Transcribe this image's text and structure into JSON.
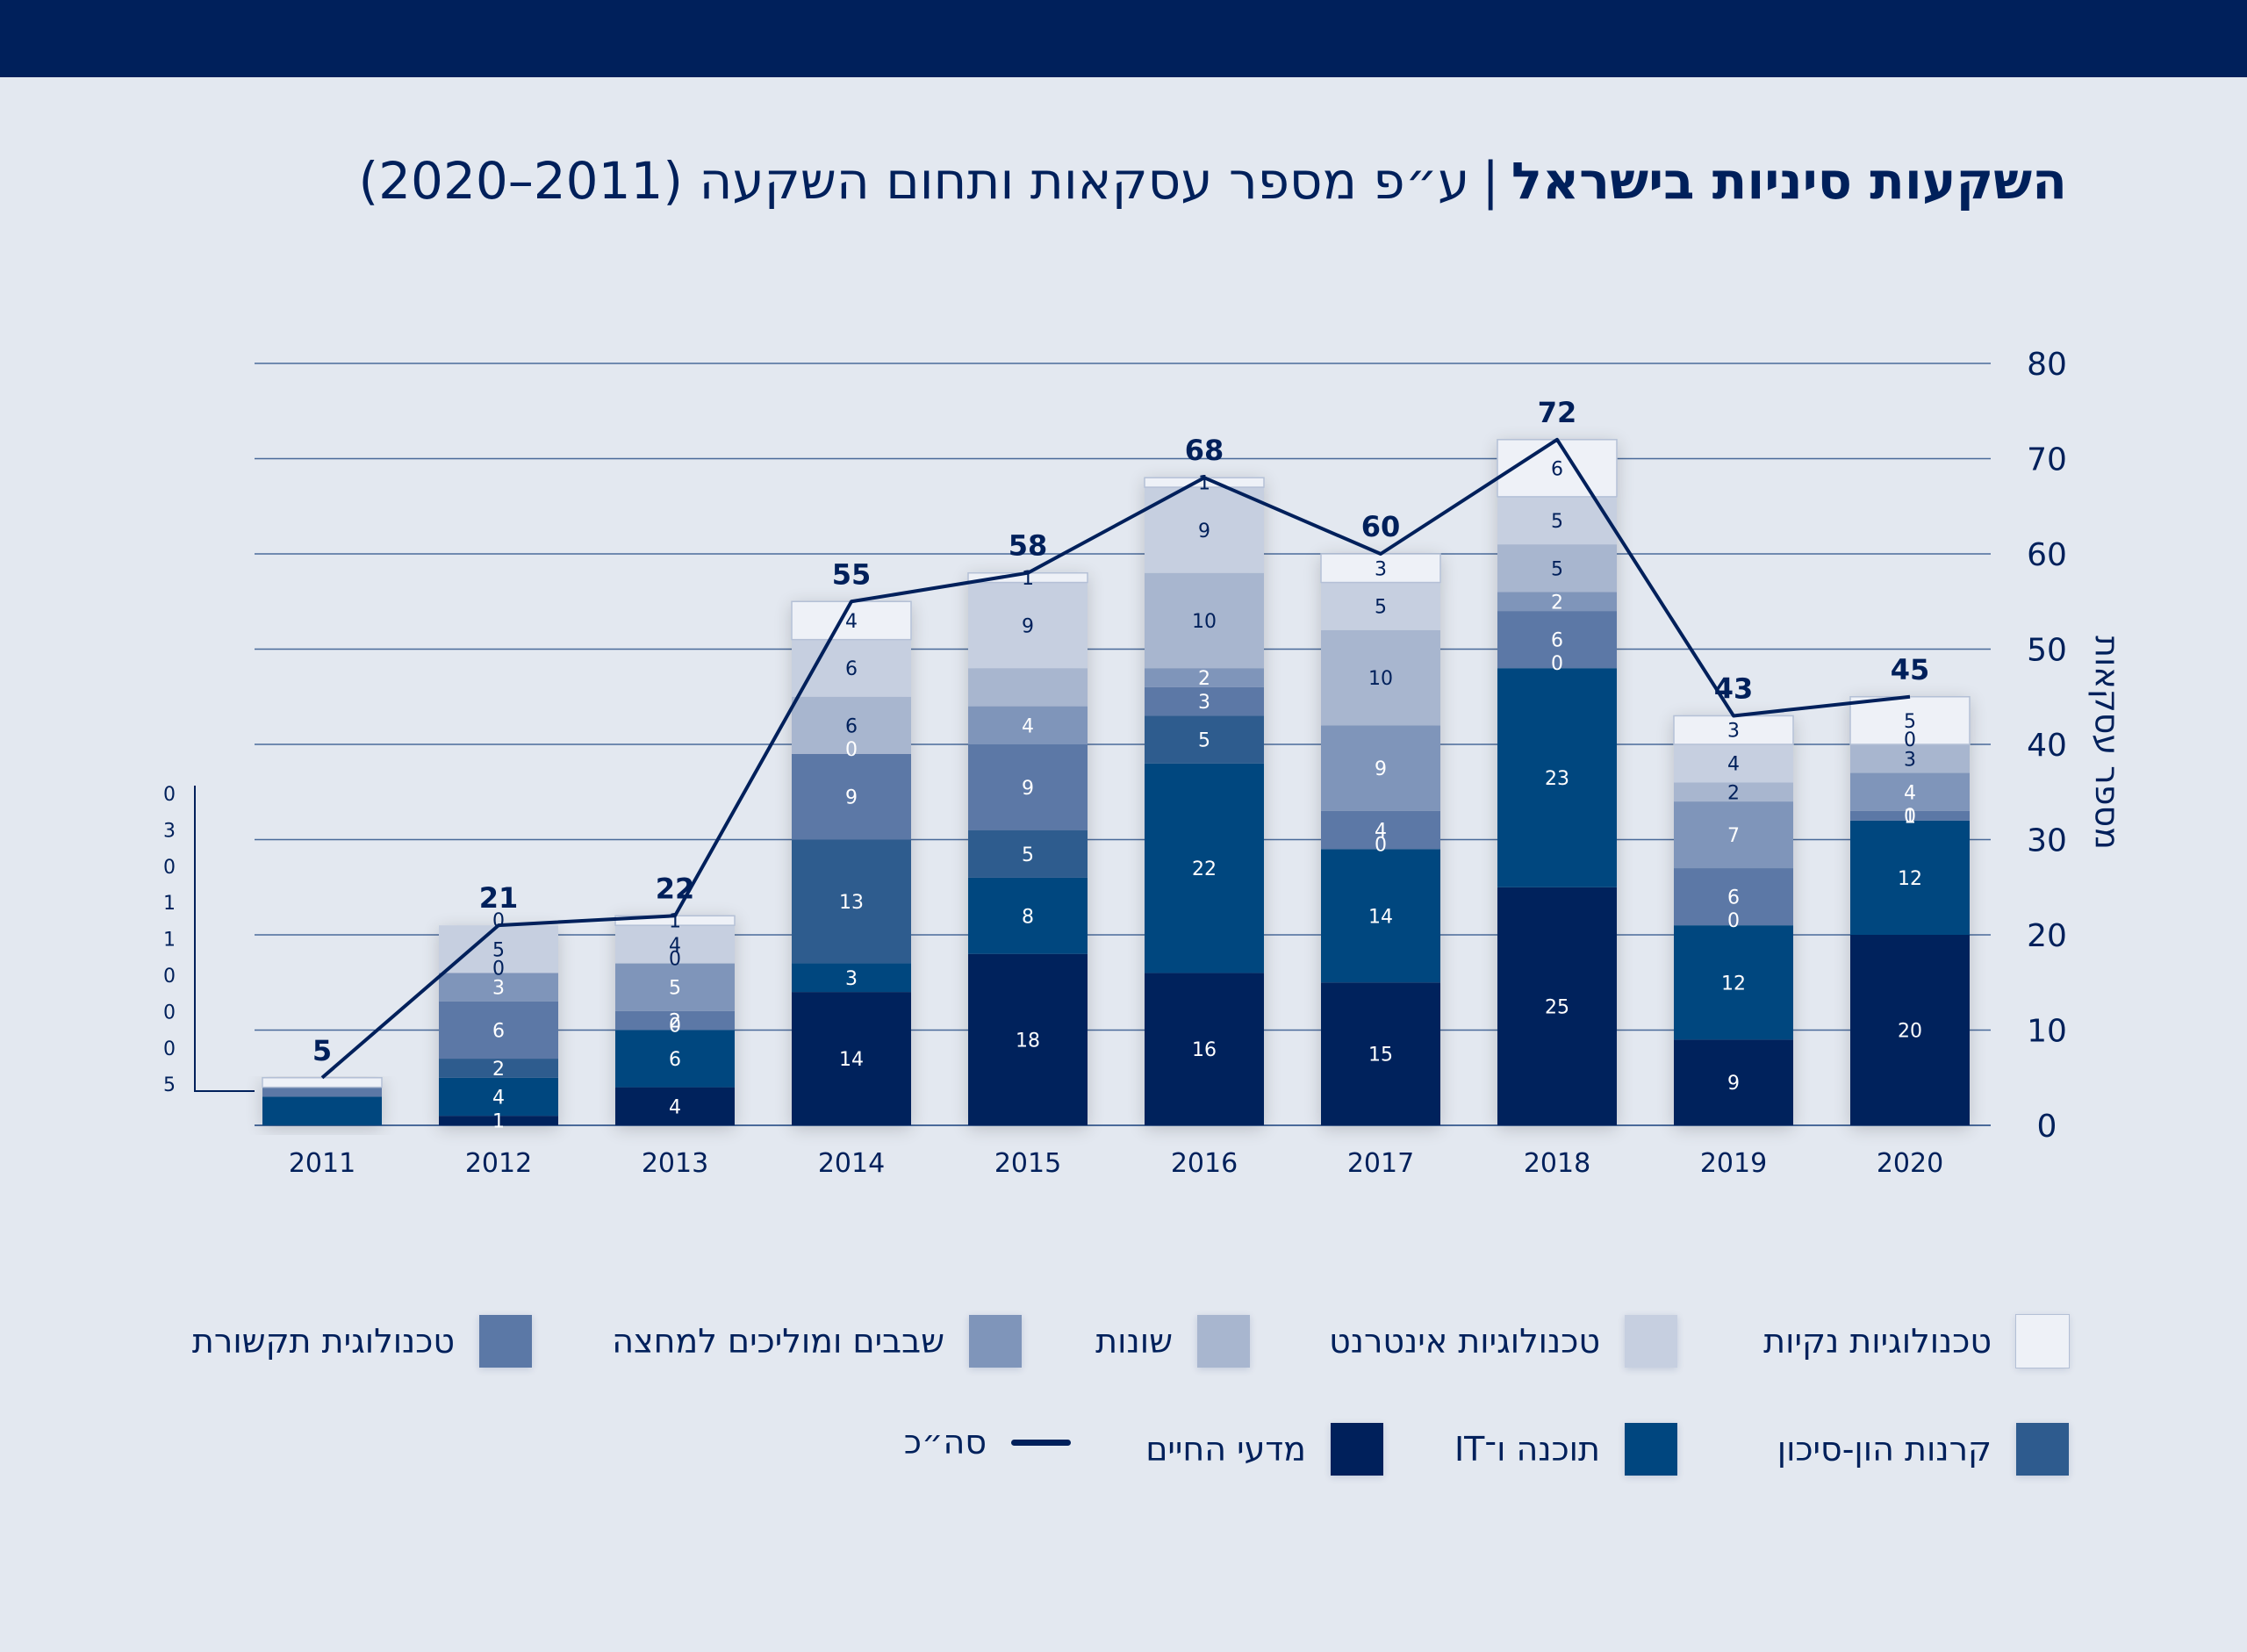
{
  "header": {
    "title_bold": "השקעות סיניות בישראל",
    "separator": "|",
    "title_rest": "ע״פ מספר עסקאות ותחום השקעה (2011–2020)"
  },
  "chart_data": {
    "type": "bar",
    "stacked": true,
    "categories": [
      "2011",
      "2012",
      "2013",
      "2014",
      "2015",
      "2016",
      "2017",
      "2018",
      "2019",
      "2020"
    ],
    "ylabel": "מספר עסקאות",
    "ylim": [
      0,
      80
    ],
    "yticks": [
      "0",
      "10",
      "20",
      "30",
      "40",
      "50",
      "60",
      "70",
      "80"
    ],
    "grid": true,
    "legend_position": "bottom",
    "series": [
      {
        "name": "מדעי החיים",
        "color": "#00205b",
        "values": [
          0,
          1,
          4,
          14,
          18,
          16,
          15,
          25,
          9,
          20
        ]
      },
      {
        "name": "תוכנה ו־IT",
        "color": "#00467f",
        "values": [
          3,
          4,
          6,
          3,
          8,
          22,
          14,
          23,
          12,
          12
        ]
      },
      {
        "name": "קרנות הון-סיכון",
        "color": "#2e5b8e",
        "values": [
          0,
          2,
          0,
          13,
          5,
          5,
          0,
          0,
          0,
          0
        ]
      },
      {
        "name": "טכנולוגית תקשורת",
        "color": "#5b78a6",
        "values": [
          1,
          6,
          2,
          9,
          9,
          3,
          4,
          6,
          6,
          1
        ]
      },
      {
        "name": "שבבים ומוליכים למחצה",
        "color": "#7f95ba",
        "values": [
          0,
          3,
          5,
          0,
          4,
          2,
          9,
          2,
          7,
          4
        ]
      },
      {
        "name": "שונות",
        "color": "#a8b6cf",
        "values": [
          0,
          0,
          0,
          6,
          4,
          10,
          10,
          5,
          2,
          3
        ]
      },
      {
        "name": "טכנולוגיות אינטרנט",
        "color": "#c6cfe0",
        "values": [
          0,
          5,
          4,
          6,
          9,
          9,
          5,
          5,
          4,
          0
        ]
      },
      {
        "name": "טכנולוגיות נקיות",
        "color": "#eef1f7",
        "values": [
          1,
          0,
          1,
          4,
          1,
          1,
          3,
          6,
          3,
          5
        ]
      }
    ],
    "segment_labels": [
      [
        "",
        "",
        "",
        "",
        "",
        "",
        "",
        ""
      ],
      [
        "1",
        "4",
        "2",
        "6",
        "3",
        "0",
        "5",
        "0"
      ],
      [
        "4",
        "6",
        "0",
        "2",
        "5",
        "0",
        "4",
        "1"
      ],
      [
        "14",
        "3",
        "13",
        "9",
        "0",
        "6",
        "6",
        "4"
      ],
      [
        "18",
        "8",
        "5",
        "9",
        "4",
        "",
        "9",
        "1"
      ],
      [
        "16",
        "22",
        "5",
        "3",
        "2",
        "10",
        "9",
        "1"
      ],
      [
        "15",
        "14",
        "0",
        "4",
        "9",
        "10",
        "5",
        "3"
      ],
      [
        "25",
        "23",
        "0",
        "6",
        "2",
        "5",
        "5",
        "6"
      ],
      [
        "9",
        "12",
        "0",
        "6",
        "7",
        "2",
        "4",
        "3"
      ],
      [
        "20",
        "12",
        "0",
        "1",
        "4",
        "3",
        "0",
        "5"
      ]
    ],
    "totals_series": {
      "name": "סה״כ",
      "color": "#00205b",
      "values": [
        5,
        21,
        22,
        55,
        58,
        68,
        60,
        72,
        43,
        45
      ]
    },
    "callout_2011": [
      "0",
      "3",
      "0",
      "1",
      "1",
      "0",
      "0",
      "0",
      "5"
    ]
  },
  "legend": {
    "rows": [
      [
        {
          "label": "טכנולוגיות נקיות",
          "color": "#eef1f7",
          "kind": "swatch"
        },
        {
          "label": "טכנולוגיות אינטרנט",
          "color": "#c6cfe0",
          "kind": "swatch"
        },
        {
          "label": "שונות",
          "color": "#a8b6cf",
          "kind": "swatch"
        },
        {
          "label": "שבבים ומוליכים למחצה",
          "color": "#7f95ba",
          "kind": "swatch"
        },
        {
          "label": "טכנולוגית תקשורת",
          "color": "#5b78a6",
          "kind": "swatch"
        }
      ],
      [
        {
          "label": "קרנות הון-סיכון",
          "color": "#2e5b8e",
          "kind": "swatch"
        },
        {
          "label": "תוכנה ו־IT",
          "color": "#00467f",
          "kind": "swatch"
        },
        {
          "label": "מדעי החיים",
          "color": "#00205b",
          "kind": "swatch"
        },
        {
          "label": "סה״כ",
          "color": "#00205b",
          "kind": "line"
        }
      ]
    ]
  }
}
